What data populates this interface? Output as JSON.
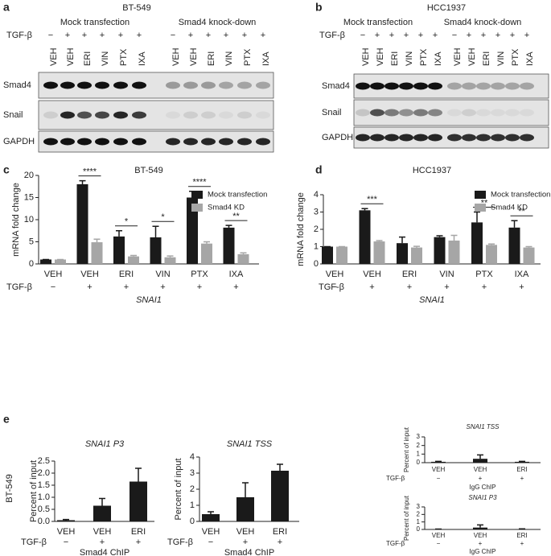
{
  "panel_labels": [
    "a",
    "b",
    "c",
    "d",
    "e"
  ],
  "blots": [
    {
      "title": "BT-549",
      "groups": [
        "Mock transfection",
        "Smad4 knock-down"
      ],
      "treatment_label": "TGF-β",
      "treatment": [
        "−",
        "+",
        "+",
        "+",
        "+",
        "+",
        "−",
        "+",
        "+",
        "+",
        "+",
        "+"
      ],
      "lanes": [
        "VEH",
        "VEH",
        "ERI",
        "VIN",
        "PTX",
        "IXA",
        "VEH",
        "VEH",
        "ERI",
        "VIN",
        "PTX",
        "IXA"
      ],
      "proteins": [
        "Smad4",
        "Snail",
        "GAPDH"
      ]
    },
    {
      "title": "HCC1937",
      "groups": [
        "Mock transfection",
        "Smad4 knock-down"
      ],
      "treatment_label": "TGF-β",
      "treatment": [
        "−",
        "+",
        "+",
        "+",
        "+",
        "+",
        "−",
        "+",
        "+",
        "+",
        "+",
        "+"
      ],
      "lanes": [
        "VEH",
        "VEH",
        "ERI",
        "VIN",
        "PTX",
        "IXA",
        "VEH",
        "VEH",
        "ERI",
        "VIN",
        "PTX",
        "IXA"
      ],
      "proteins": [
        "Smad4",
        "Snail",
        "GAPDH"
      ]
    }
  ],
  "e_side_label": "BT-549",
  "chart_data": [
    {
      "type": "bar",
      "title": "BT-549",
      "y_label": "mRNA fold change",
      "x_label": "SNAI1",
      "treatment_label": "TGF-β",
      "treatment": [
        "−",
        "+",
        "+",
        "+",
        "+",
        "+"
      ],
      "categories": [
        "VEH",
        "VEH",
        "ERI",
        "VIN",
        "PTX",
        "IXA"
      ],
      "series": [
        {
          "name": "Mock transfection",
          "color": "#1a1a1a",
          "values": [
            1,
            18,
            6.2,
            6,
            15,
            8.2
          ],
          "errors": [
            0,
            0.8,
            1.3,
            2.5,
            1.4,
            0.5
          ]
        },
        {
          "name": "Smad4 KD",
          "color": "#a6a6a6",
          "values": [
            1,
            4.9,
            1.7,
            1.5,
            4.6,
            2.2
          ],
          "errors": [
            0,
            0.7,
            0.2,
            0.3,
            0.4,
            0.3
          ]
        }
      ],
      "significance": [
        null,
        "****",
        "*",
        "*",
        "****",
        "**"
      ],
      "ylim": [
        0,
        20
      ],
      "yticks": [
        0,
        5,
        10,
        15,
        20
      ],
      "legend": "upper right"
    },
    {
      "type": "bar",
      "title": "HCC1937",
      "y_label": "mRNA fold change",
      "x_label": "SNAI1",
      "treatment_label": "TGF-β",
      "treatment": [
        "−",
        "+",
        "+",
        "+",
        "+",
        "+"
      ],
      "categories": [
        "VEH",
        "VEH",
        "ERI",
        "VIN",
        "PTX",
        "IXA"
      ],
      "series": [
        {
          "name": "Mock transfection",
          "color": "#1a1a1a",
          "values": [
            1,
            3.1,
            1.2,
            1.55,
            2.4,
            2.1
          ],
          "errors": [
            0,
            0.1,
            0.35,
            0.08,
            0.6,
            0.4
          ]
        },
        {
          "name": "Smad4 KD",
          "color": "#a6a6a6",
          "values": [
            1,
            1.3,
            0.95,
            1.35,
            1.1,
            0.95
          ],
          "errors": [
            0,
            0.05,
            0.07,
            0.3,
            0.05,
            0.05
          ]
        }
      ],
      "significance": [
        null,
        "***",
        null,
        null,
        "**",
        "**"
      ],
      "ylim": [
        0,
        4
      ],
      "yticks": [
        0,
        1,
        2,
        3,
        4
      ],
      "legend": "upper right"
    },
    {
      "type": "bar",
      "title": "SNAI1 P3",
      "y_label": "Percent of input",
      "x_label": "Smad4 ChIP",
      "treatment_label": "TGF-β",
      "treatment": [
        "−",
        "+",
        "+"
      ],
      "categories": [
        "VEH",
        "VEH",
        "ERI"
      ],
      "series": [
        {
          "color": "#1a1a1a",
          "values": [
            0.05,
            0.65,
            1.65
          ],
          "errors": [
            0.03,
            0.3,
            0.55
          ]
        }
      ],
      "ylim": [
        0,
        2.5
      ],
      "yticks": [
        {
          "value": 0,
          "label": "0.0"
        },
        {
          "value": 0.5,
          "label": "0.5"
        },
        {
          "value": 1,
          "label": "1.0"
        },
        {
          "value": 1.5,
          "label": "1.5"
        },
        {
          "value": 2,
          "label": "2.0"
        },
        {
          "value": 2.5,
          "label": "2.5"
        }
      ]
    },
    {
      "type": "bar",
      "title": "SNAI1 TSS",
      "y_label": "Percent of input",
      "x_label": "Smad4 ChIP",
      "treatment_label": "TGF-β",
      "treatment": [
        "−",
        "+",
        "+"
      ],
      "categories": [
        "VEH",
        "VEH",
        "ERI"
      ],
      "series": [
        {
          "color": "#1a1a1a",
          "values": [
            0.45,
            1.5,
            3.15
          ],
          "errors": [
            0.15,
            0.9,
            0.4
          ]
        }
      ],
      "ylim": [
        0,
        4
      ],
      "yticks": [
        0,
        1,
        2,
        3,
        4
      ]
    },
    {
      "type": "bar",
      "title": "SNAI1 TSS",
      "y_label": "Percent of input",
      "x_label": "IgG ChIP",
      "treatment_label": "TGF-β",
      "treatment": [
        "−",
        "+",
        "+"
      ],
      "categories": [
        "VEH",
        "VEH",
        "ERI"
      ],
      "series": [
        {
          "color": "#1a1a1a",
          "values": [
            0.1,
            0.45,
            0.1
          ],
          "errors": [
            0.05,
            0.45,
            0.05
          ]
        }
      ],
      "ylim": [
        0,
        3
      ],
      "yticks": [
        0,
        1,
        2,
        3
      ]
    },
    {
      "type": "bar",
      "title": "SNAI1 P3",
      "y_label": "Percent of input",
      "x_label": "IgG ChIP",
      "treatment_label": "TGF-β",
      "treatment": [
        "−",
        "+",
        "+"
      ],
      "categories": [
        "VEH",
        "VEH",
        "ERI"
      ],
      "series": [
        {
          "color": "#1a1a1a",
          "values": [
            0.03,
            0.25,
            0.05
          ],
          "errors": [
            0.02,
            0.35,
            0.03
          ]
        }
      ],
      "ylim": [
        0,
        3
      ],
      "yticks": [
        0,
        1,
        2,
        3
      ]
    }
  ]
}
